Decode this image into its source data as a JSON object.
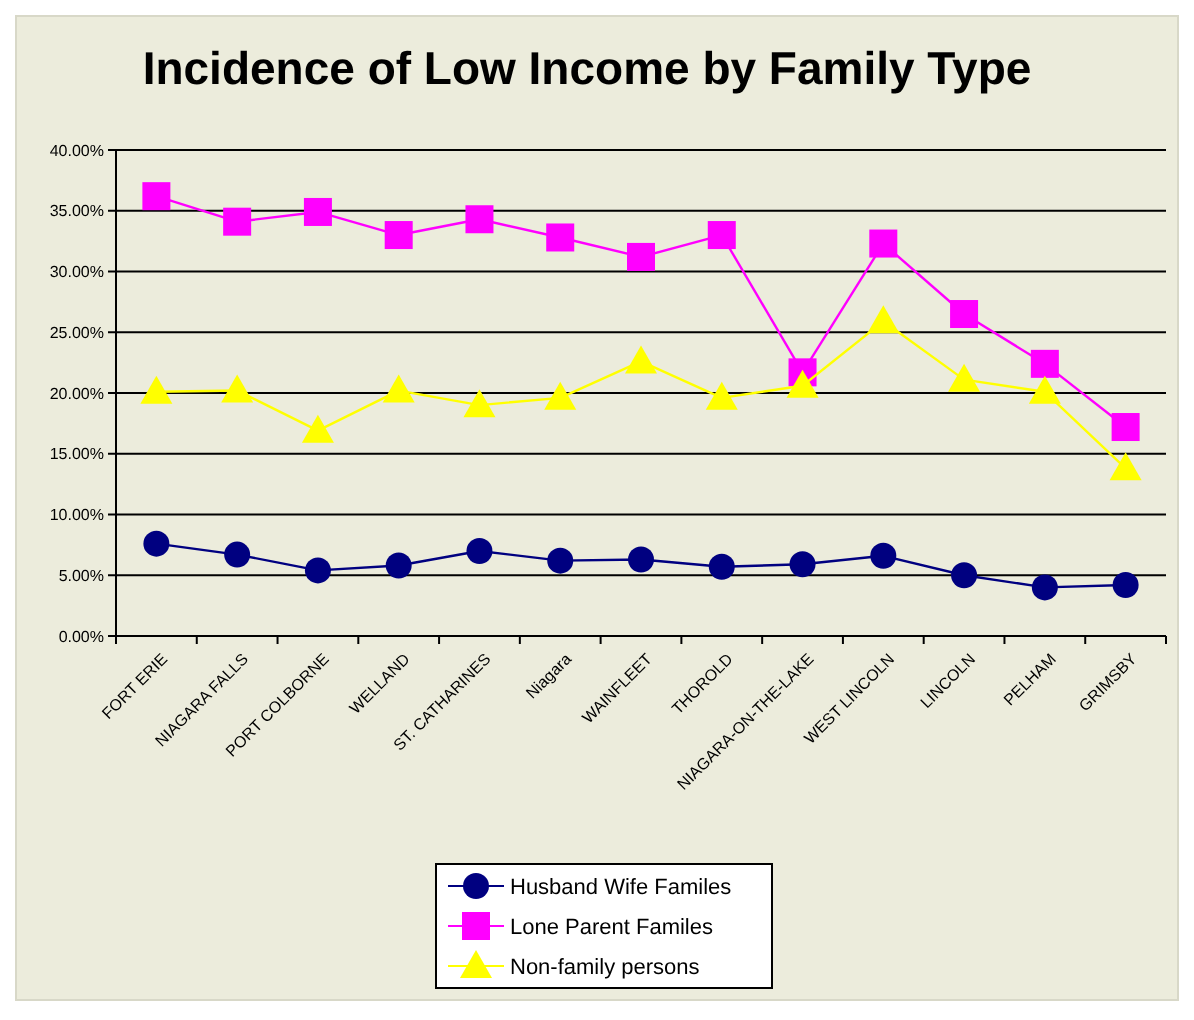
{
  "chart_data": {
    "type": "line",
    "title": "Incidence of Low Income by Family Type",
    "categories": [
      "FORT ERIE",
      "NIAGARA FALLS",
      "PORT COLBORNE",
      "WELLAND",
      "ST. CATHARINES",
      "Niagara",
      "WAINFLEET",
      "THOROLD",
      "NIAGARA-ON-THE-LAKE",
      "WEST LINCOLN",
      "LINCOLN",
      "PELHAM",
      "GRIMSBY"
    ],
    "series": [
      {
        "name": "Husband Wife Familes",
        "color": "#000080",
        "marker": "circle",
        "values": [
          7.6,
          6.7,
          5.4,
          5.8,
          7.0,
          6.2,
          6.3,
          5.7,
          5.9,
          6.6,
          5.0,
          4.0,
          4.2
        ]
      },
      {
        "name": "Lone Parent Familes",
        "color": "#ff00ff",
        "marker": "square",
        "values": [
          36.2,
          34.1,
          34.9,
          33.0,
          34.3,
          32.8,
          31.2,
          33.0,
          21.7,
          32.3,
          26.5,
          22.4,
          17.2
        ]
      },
      {
        "name": "Non-family persons",
        "color": "#ffff00",
        "marker": "triangle",
        "values": [
          20.1,
          20.2,
          16.9,
          20.2,
          19.0,
          19.6,
          22.6,
          19.6,
          20.6,
          25.9,
          21.1,
          20.1,
          13.8
        ]
      }
    ],
    "ylim": [
      0,
      40
    ],
    "yticks": [
      {
        "value": 0,
        "label": "0.00%"
      },
      {
        "value": 5,
        "label": "5.00%"
      },
      {
        "value": 10,
        "label": "10.00%"
      },
      {
        "value": 15,
        "label": "15.00%"
      },
      {
        "value": 20,
        "label": "20.00%"
      },
      {
        "value": 25,
        "label": "25.00%"
      },
      {
        "value": 30,
        "label": "30.00%"
      },
      {
        "value": 35,
        "label": "35.00%"
      },
      {
        "value": 40,
        "label": "40.00%"
      }
    ],
    "grid": "y",
    "legend": "bottom"
  }
}
